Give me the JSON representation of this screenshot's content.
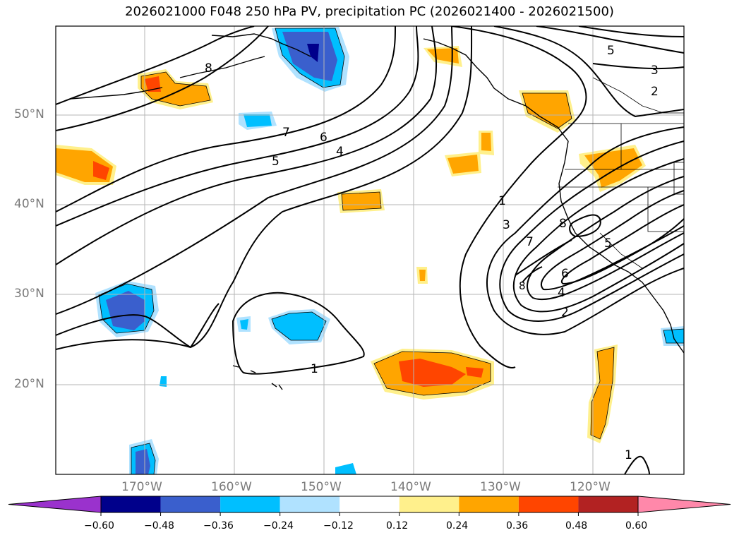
{
  "title": "2026021000 F048 250 hPa PV, precipitation PC (2026021400 - 2026021500)",
  "map": {
    "lon_range": [
      -180,
      -110
    ],
    "lat_range": [
      10,
      60
    ],
    "lat_labels": [
      "50°N",
      "40°N",
      "30°N",
      "20°N"
    ],
    "lon_labels": [
      "170°W",
      "160°W",
      "150°W",
      "140°W",
      "130°W",
      "120°W"
    ],
    "gridlines": true,
    "contour_labels": [
      "8",
      "7",
      "6",
      "5",
      "4",
      "5",
      "3",
      "2",
      "1",
      "3",
      "7",
      "8",
      "6",
      "4",
      "2",
      "1",
      "5",
      "1"
    ]
  },
  "colorbar": {
    "ticks": [
      "−0.60",
      "−0.48",
      "−0.36",
      "−0.24",
      "−0.12",
      "0.12",
      "0.24",
      "0.36",
      "0.48",
      "0.60"
    ],
    "colors": [
      "#9a32cd",
      "#00008b",
      "#3a5fcd",
      "#00bfff",
      "#b0e2ff",
      "#ffffff",
      "#fff08c",
      "#ffa500",
      "#ff4500",
      "#b22222",
      "#ff88aa"
    ]
  }
}
